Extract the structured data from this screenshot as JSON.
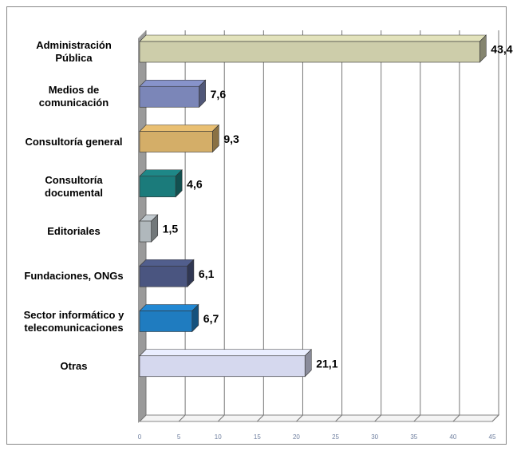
{
  "chart_data": {
    "type": "bar3d_horizontal",
    "categories": [
      "Administración Pública",
      "Medios de comunicación",
      "Consultoría general",
      "Consultoría documental",
      "Editoriales",
      "Fundaciones, ONGs",
      "Sector informático y telecomunicaciones",
      "Otras"
    ],
    "values": [
      43.4,
      7.6,
      9.3,
      4.6,
      1.5,
      6.1,
      6.7,
      21.1
    ],
    "value_labels": [
      "43,4",
      "7,6",
      "9,3",
      "4,6",
      "1,5",
      "6,1",
      "6,7",
      "21,1"
    ],
    "colors": [
      "#cdcdaa",
      "#7b86b8",
      "#d4ae68",
      "#1b7b7b",
      "#b0b8bc",
      "#4a5580",
      "#1f7cc0",
      "#d5d8ee"
    ],
    "xlim": [
      0,
      45
    ],
    "xticks": [
      0,
      5,
      10,
      15,
      20,
      25,
      30,
      35,
      40,
      45
    ],
    "grid": true
  }
}
